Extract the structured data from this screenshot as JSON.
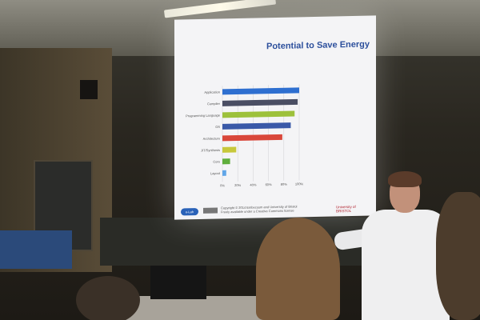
{
  "slide": {
    "title": "Potential to Save Energy",
    "footer_left": "e-Lab",
    "footer_copy_1": "Copyright © 2014 Embecosm and University of Bristol",
    "footer_copy_2": "Freely available under a Creative Commons license",
    "footer_right_1": "University of",
    "footer_right_2": "BRISTOL"
  },
  "chart_data": {
    "type": "bar",
    "orientation": "horizontal",
    "categories": [
      "Application",
      "Compiler",
      "Programming Language",
      "OS",
      "Architecture",
      "JIT/Synthesis",
      "Core",
      "Layout"
    ],
    "values": [
      100,
      98,
      94,
      89,
      78,
      18,
      10,
      5
    ],
    "colors": [
      "#2e6fd0",
      "#4a4e63",
      "#9dc13b",
      "#3a59a8",
      "#d9473a",
      "#c7c83b",
      "#5fae3c",
      "#61a6e8"
    ],
    "xlim": [
      0,
      100
    ],
    "xticks": [
      "0%",
      "20%",
      "40%",
      "60%",
      "80%",
      "100%"
    ],
    "grid": true
  }
}
